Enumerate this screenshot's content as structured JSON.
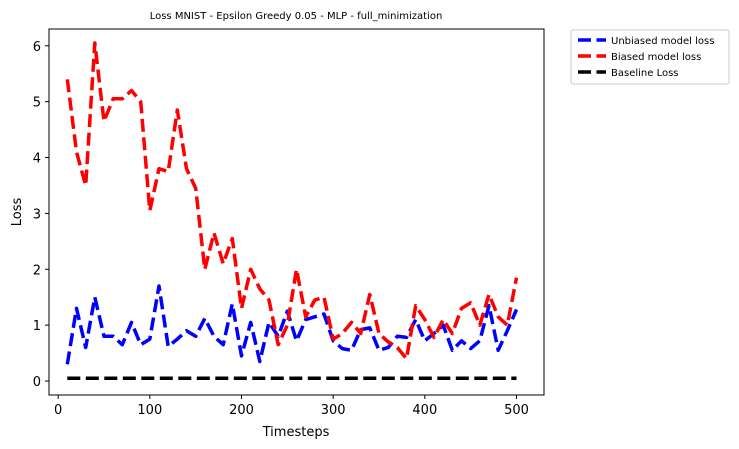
{
  "chart_data": {
    "type": "line",
    "title": "Loss MNIST - Epsilon Greedy 0.05 - MLP - full_minimization",
    "xlabel": "Timesteps",
    "ylabel": "Loss",
    "xlim": [
      -10,
      530
    ],
    "ylim": [
      -0.25,
      6.3
    ],
    "x_ticks": [
      0,
      100,
      200,
      300,
      400,
      500
    ],
    "y_ticks": [
      0,
      1,
      2,
      3,
      4,
      5,
      6
    ],
    "grid": false,
    "legend_placement": "outside-top-right",
    "x": [
      10,
      20,
      30,
      40,
      50,
      60,
      70,
      80,
      90,
      100,
      110,
      120,
      130,
      140,
      150,
      160,
      170,
      180,
      190,
      200,
      210,
      220,
      230,
      240,
      250,
      260,
      270,
      280,
      290,
      300,
      310,
      320,
      330,
      340,
      350,
      360,
      370,
      380,
      390,
      400,
      410,
      420,
      430,
      440,
      450,
      460,
      470,
      480,
      490,
      500
    ],
    "series": [
      {
        "name": "Unbiased model loss",
        "color": "#0000ff",
        "values": [
          0.3,
          1.3,
          0.6,
          1.5,
          0.8,
          0.8,
          0.65,
          1.05,
          0.65,
          0.75,
          1.7,
          0.62,
          0.75,
          0.9,
          0.8,
          1.12,
          0.8,
          0.65,
          1.38,
          0.45,
          1.05,
          0.35,
          1.05,
          0.8,
          1.25,
          0.72,
          1.1,
          1.15,
          1.2,
          0.72,
          0.58,
          0.55,
          0.92,
          0.95,
          0.55,
          0.6,
          0.8,
          0.78,
          1.1,
          0.72,
          0.85,
          1.0,
          0.55,
          0.72,
          0.58,
          0.72,
          1.35,
          0.55,
          0.9,
          1.28
        ]
      },
      {
        "name": "Biased model loss",
        "color": "#ff0000",
        "values": [
          5.4,
          4.1,
          3.5,
          6.05,
          4.65,
          5.05,
          5.05,
          5.2,
          5.0,
          3.05,
          3.8,
          3.75,
          4.85,
          3.8,
          3.45,
          2.0,
          2.65,
          2.1,
          2.55,
          1.3,
          2.0,
          1.65,
          1.45,
          0.65,
          1.0,
          2.0,
          1.15,
          1.45,
          1.5,
          0.75,
          0.85,
          1.05,
          0.85,
          1.55,
          0.85,
          0.7,
          0.6,
          0.4,
          1.35,
          1.1,
          0.78,
          1.1,
          0.85,
          1.3,
          1.4,
          1.0,
          1.55,
          1.15,
          1.0,
          1.85
        ]
      },
      {
        "name": "Baseline Loss",
        "color": "#000000",
        "values": [
          0.05,
          0.05,
          0.05,
          0.05,
          0.05,
          0.05,
          0.05,
          0.05,
          0.05,
          0.05,
          0.05,
          0.05,
          0.05,
          0.05,
          0.05,
          0.05,
          0.05,
          0.05,
          0.05,
          0.05,
          0.05,
          0.05,
          0.05,
          0.05,
          0.05,
          0.05,
          0.05,
          0.05,
          0.05,
          0.05,
          0.05,
          0.05,
          0.05,
          0.05,
          0.05,
          0.05,
          0.05,
          0.05,
          0.05,
          0.05,
          0.05,
          0.05,
          0.05,
          0.05,
          0.05,
          0.05,
          0.05,
          0.05,
          0.05,
          0.05
        ]
      }
    ]
  }
}
